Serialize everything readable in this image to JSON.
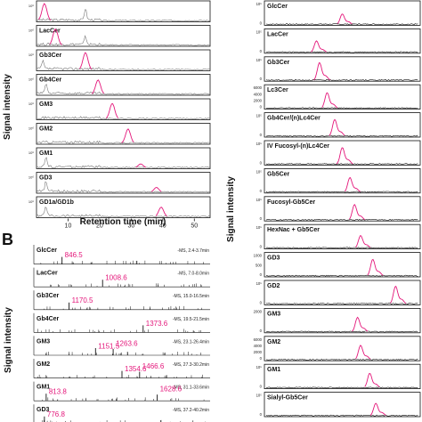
{
  "figure": {
    "section_b_letter": "B",
    "ylabel_left_top": "Signal intensity",
    "ylabel_left_bottom": "Signal intensity",
    "ylabel_right": "Signal intensity",
    "xlabel_left_top": "Retention time (min)",
    "x_ticks_left_top": [
      "10",
      "20",
      "30",
      "40",
      "50"
    ]
  },
  "colors": {
    "magenta": "#e4167a",
    "black": "#111111",
    "gray": "#777777"
  },
  "chart_data": [
    {
      "type": "line",
      "panel": "A-left",
      "xlabel": "Retention time (min)",
      "ylabel": "Signal intensity",
      "xlim": [
        0,
        55
      ],
      "x_ticks": [
        10,
        20,
        30,
        40,
        50
      ],
      "tracks": [
        {
          "label": "",
          "peak_x": 2.5,
          "peak_h": 0.9,
          "second_x": 15.5,
          "second_h": 0.6
        },
        {
          "label": "LacCer",
          "peak_x": 6.0,
          "peak_h": 0.85,
          "second_x": 15.5,
          "second_h": 0.4
        },
        {
          "label": "Gb3Cer",
          "peak_x": 15.5,
          "peak_h": 0.9,
          "second_x": 2.0,
          "second_h": 0.4
        },
        {
          "label": "Gb4Cer",
          "peak_x": 19.5,
          "peak_h": 0.75,
          "second_x": 3.0,
          "second_h": 0.5
        },
        {
          "label": "GM3",
          "peak_x": 24.0,
          "peak_h": 0.8,
          "second_x": 0,
          "second_h": 0
        },
        {
          "label": "GM2",
          "peak_x": 29.0,
          "peak_h": 0.75,
          "second_x": 0,
          "second_h": 0
        },
        {
          "label": "GM1",
          "peak_x": 33.0,
          "peak_h": 0.2,
          "second_x": 3.0,
          "second_h": 0.5
        },
        {
          "label": "GD3",
          "peak_x": 38.0,
          "peak_h": 0.25,
          "second_x": 3.0,
          "second_h": 0.5
        },
        {
          "label": "GD1a/GD1b",
          "peak_x": 39.5,
          "peak_h": 0.5,
          "second_x": 3.0,
          "second_h": 0.5
        }
      ],
      "y_tick_text": "10⁶"
    },
    {
      "type": "line",
      "panel": "A-right",
      "ylabel": "Signal intensity",
      "tracks": [
        {
          "label": "GlcCer",
          "ticks": [
            "10⁵",
            "0"
          ],
          "peak_x": 0.5,
          "peak_h": 0.5
        },
        {
          "label": "LacCer",
          "ticks": [
            "10⁵",
            "0"
          ],
          "peak_x": 0.33,
          "peak_h": 0.55
        },
        {
          "label": "Gb3Cer",
          "ticks": [
            "10⁵",
            "0"
          ],
          "peak_x": 0.35,
          "peak_h": 0.85
        },
        {
          "label": "Lc3Cer",
          "ticks": [
            "6000",
            "4000",
            "2000",
            "0"
          ],
          "peak_x": 0.4,
          "peak_h": 0.75
        },
        {
          "label": "Gb4Cer/(n)Lc4Cer",
          "ticks": [
            "10⁵",
            "0"
          ],
          "peak_x": 0.45,
          "peak_h": 0.8
        },
        {
          "label": "IV Fucosyl-(n)Lc4Cer",
          "ticks": [
            "10⁵",
            "0"
          ],
          "peak_x": 0.5,
          "peak_h": 0.8
        },
        {
          "label": "Gb5Cer",
          "ticks": [
            "10⁵",
            "0"
          ],
          "peak_x": 0.55,
          "peak_h": 0.7
        },
        {
          "label": "Fucosyl-Gb5Cer",
          "ticks": [
            "10⁵",
            "0"
          ],
          "peak_x": 0.58,
          "peak_h": 0.75
        },
        {
          "label": "HexNac + Gb5Cer",
          "ticks": [
            "10⁵",
            "0"
          ],
          "peak_x": 0.62,
          "peak_h": 0.6
        },
        {
          "label": "GD3",
          "ticks": [
            "1000",
            "500",
            "0"
          ],
          "peak_x": 0.7,
          "peak_h": 0.8
        },
        {
          "label": "GD2",
          "ticks": [
            "10⁵",
            "0"
          ],
          "peak_x": 0.85,
          "peak_h": 0.85
        },
        {
          "label": "GM3",
          "ticks": [
            "2000",
            "0"
          ],
          "peak_x": 0.6,
          "peak_h": 0.7
        },
        {
          "label": "GM2",
          "ticks": [
            "6000",
            "4000",
            "2000",
            "0"
          ],
          "peak_x": 0.62,
          "peak_h": 0.7
        },
        {
          "label": "GM1",
          "ticks": [
            "10⁵",
            "0"
          ],
          "peak_x": 0.68,
          "peak_h": 0.7
        },
        {
          "label": "Sialyl-Gb5Cer",
          "ticks": [
            "10⁵",
            "0"
          ],
          "peak_x": 0.72,
          "peak_h": 0.6
        }
      ]
    },
    {
      "type": "bar",
      "panel": "B",
      "ylabel": "Signal intensity",
      "spectra": [
        {
          "label": "GlcCer",
          "range": "-MS, 2.4-3.7min",
          "mz": "846.5",
          "peak_pos": 0.16
        },
        {
          "label": "LacCer",
          "range": "-MS, 7.0-8.0min",
          "mz": "1008.6",
          "peak_pos": 0.39
        },
        {
          "label": "Gb3Cer",
          "range": "-MS, 15.0-16.5min",
          "mz": "1170.5",
          "peak_pos": 0.2
        },
        {
          "label": "Gb4Cer",
          "range": "-MS, 19.5-21.5min",
          "mz": "1373.6",
          "peak_pos": 0.62
        },
        {
          "label": "GM3",
          "range": "-MS, 23.1-26.4min",
          "mz": "1151.5",
          "mz2": "1263.6",
          "peak_pos": 0.35,
          "peak_pos2": 0.45
        },
        {
          "label": "GM2",
          "range": "-MS, 27.3-30.2min",
          "mz": "1354.6",
          "mz2": "1466.6",
          "peak_pos": 0.5,
          "peak_pos2": 0.6
        },
        {
          "label": "GM1",
          "range": "-MS, 31.1-33.6min",
          "mz": "813.8",
          "mz2": "1628.6",
          "peak_pos": 0.07,
          "peak_pos2": 0.7
        },
        {
          "label": "GD3",
          "range": "-MS, 37.2-40.2min",
          "mz": "776.8",
          "peak_pos": 0.06
        }
      ]
    }
  ]
}
